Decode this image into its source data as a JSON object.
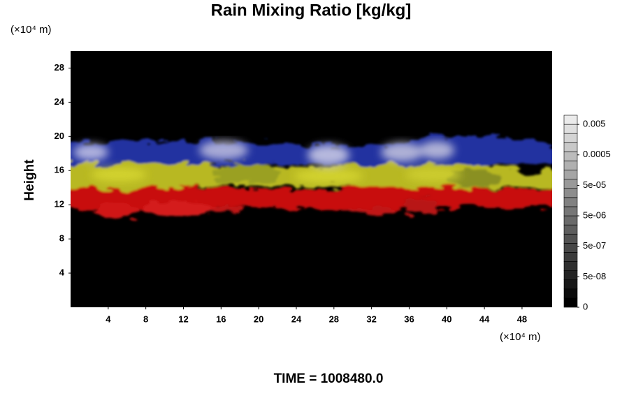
{
  "chart_data": {
    "type": "volume-render",
    "title": "Rain Mixing Ratio [kg/kg]",
    "ylabel": "Height",
    "x_unit": "(×10⁴ m)",
    "y_unit": "(×10⁴ m)",
    "footer": "TIME = 1008480.0",
    "xlim": [
      0,
      51.2
    ],
    "xticks": [
      4,
      8,
      12,
      16,
      20,
      24,
      28,
      32,
      36,
      40,
      44,
      48
    ],
    "ylim": [
      0,
      30
    ],
    "yticks": [
      4,
      8,
      12,
      16,
      20,
      24,
      28
    ],
    "colorbar": {
      "lim": [
        5e-09,
        0.01
      ],
      "log": true,
      "ticks": [
        0,
        {
          "value": 5e-08,
          "label": "5e-08"
        },
        {
          "value": 5e-07,
          "label": "5e-07"
        },
        {
          "value": 5e-06,
          "label": "5e-06"
        },
        {
          "value": 5e-05,
          "label": "5e-05"
        },
        0.0005,
        0.005
      ]
    }
  }
}
